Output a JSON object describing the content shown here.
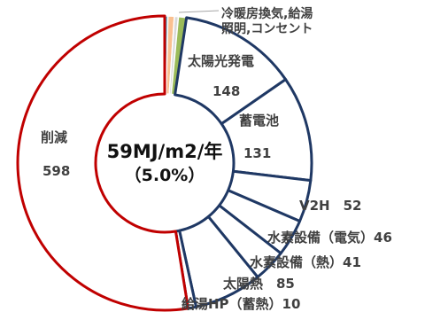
{
  "chart_data": {
    "type": "pie",
    "subtype": "donut",
    "center_label": "59MJ/m2/年",
    "center_sublabel": "（5.0%）",
    "small_slices_label": "冷暖房換気,給湯\n照明,コンセント",
    "slices": [
      {
        "label": "冷暖房換気",
        "value": 4,
        "color": "#4bacc6",
        "show_value": false
      },
      {
        "label": "給湯",
        "value": 8,
        "color": "#fac090",
        "show_value": false
      },
      {
        "label": "照明",
        "value": 5,
        "color": "#d9d9d9",
        "show_value": false
      },
      {
        "label": "コンセント",
        "value": 10,
        "color": "#9bbb59",
        "show_value": false
      },
      {
        "label": "太陽光発電",
        "value": 148,
        "color": "#ffffff",
        "stroke": "#1f3864",
        "show_value": true
      },
      {
        "label": "蓄電池",
        "value": 131,
        "color": "#ffffff",
        "stroke": "#1f3864",
        "show_value": true
      },
      {
        "label": "V2H",
        "value": 52,
        "color": "#ffffff",
        "stroke": "#1f3864",
        "show_value": true
      },
      {
        "label": "水素設備（電気）",
        "value": 46,
        "color": "#ffffff",
        "stroke": "#1f3864",
        "show_value": true
      },
      {
        "label": "水素設備（熱）",
        "value": 41,
        "color": "#ffffff",
        "stroke": "#1f3864",
        "show_value": true
      },
      {
        "label": "太陽熱",
        "value": 85,
        "color": "#ffffff",
        "stroke": "#1f3864",
        "show_value": true
      },
      {
        "label": "給湯HP（蓄熱）",
        "value": 10,
        "color": "#ffffff",
        "stroke": "#1f3864",
        "show_value": true
      },
      {
        "label": "削減",
        "value": 598,
        "color": "#ffffff",
        "stroke": "#c00000",
        "show_value": true
      }
    ],
    "labels": {
      "solar_pv": "太陽光発電",
      "solar_pv_value": "148",
      "battery": "蓄電池",
      "battery_value": "131",
      "v2h": "V2H　52",
      "h2_elec": "水素設備（電気）46",
      "h2_heat": "水素設備（熱）41",
      "solar_heat": "太陽熱　85",
      "hp": "給湯HP（蓄熱）10",
      "reduction": "削減",
      "reduction_value": "598"
    }
  }
}
